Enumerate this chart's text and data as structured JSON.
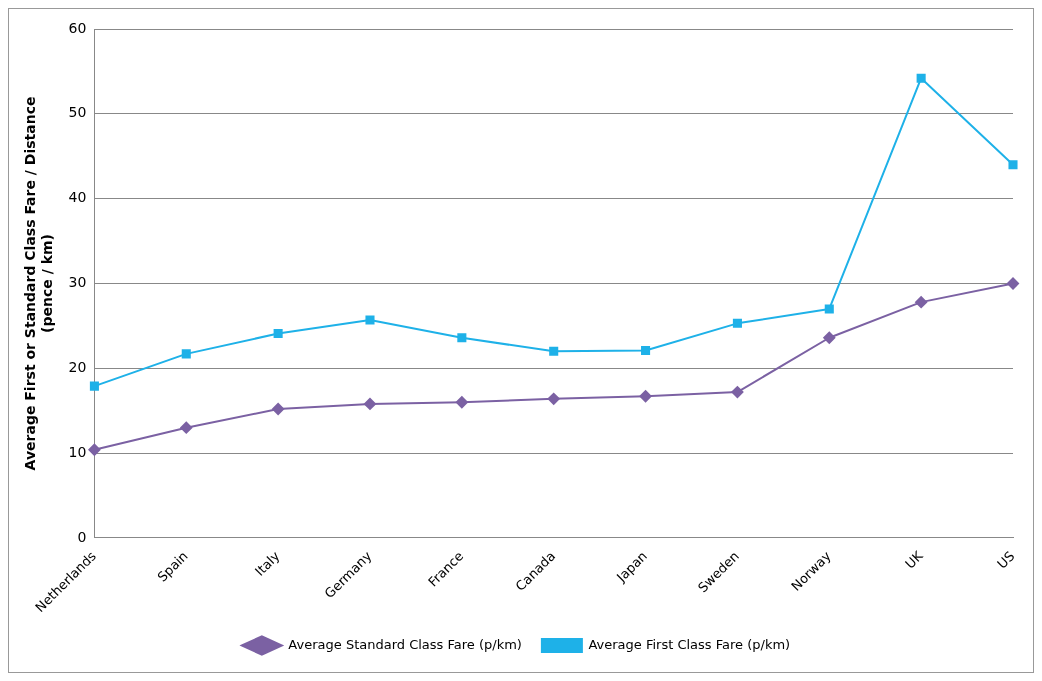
{
  "chart_data": {
    "type": "line",
    "ylabel": "Average First or Standard Class Fare / Distance\n(pence / km)",
    "categories": [
      "Netherlands",
      "Spain",
      "Italy",
      "Germany",
      "France",
      "Canada",
      "Japan",
      "Sweden",
      "Norway",
      "UK",
      "US"
    ],
    "series": [
      {
        "name": "Average Standard Class Fare (p/km)",
        "color": "#7b61a3",
        "marker": "diamond",
        "values": [
          10.4,
          13.0,
          15.2,
          15.8,
          16.0,
          16.4,
          16.7,
          17.2,
          23.6,
          27.8,
          30.0
        ]
      },
      {
        "name": "Average First Class Fare (p/km)",
        "color": "#1eb1e8",
        "marker": "square",
        "values": [
          17.9,
          21.7,
          24.1,
          25.7,
          23.6,
          22.0,
          22.1,
          25.3,
          27.0,
          54.2,
          44.0
        ]
      }
    ],
    "ylim": [
      0,
      60
    ],
    "yticks": [
      0,
      10,
      20,
      30,
      40,
      50,
      60
    ],
    "grid": "y",
    "legend": "bottom"
  }
}
